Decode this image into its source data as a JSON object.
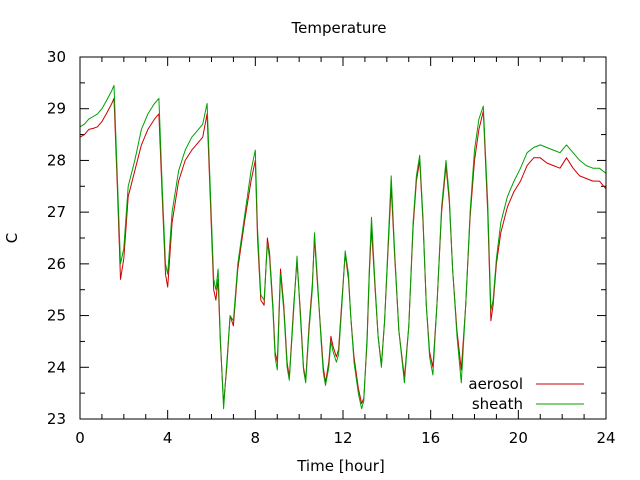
{
  "chart_data": {
    "type": "line",
    "title": "Temperature",
    "xlabel": "Time [hour]",
    "ylabel": "C",
    "xlim": [
      0,
      24
    ],
    "ylim": [
      23,
      30
    ],
    "x_ticks": [
      0,
      4,
      8,
      12,
      16,
      20,
      24
    ],
    "y_ticks": [
      23,
      24,
      25,
      26,
      27,
      28,
      29,
      30
    ],
    "grid": false,
    "legend_position": "bottom-right",
    "series": [
      {
        "name": "aerosol",
        "color": "#cc0000",
        "points": [
          [
            0,
            28.45
          ],
          [
            0.2,
            28.5
          ],
          [
            0.4,
            28.6
          ],
          [
            0.6,
            28.62
          ],
          [
            0.8,
            28.65
          ],
          [
            1,
            28.75
          ],
          [
            1.2,
            28.9
          ],
          [
            1.45,
            29.1
          ],
          [
            1.55,
            29.2
          ],
          [
            1.7,
            27.5
          ],
          [
            1.85,
            25.7
          ],
          [
            2,
            26.1
          ],
          [
            2.2,
            27.3
          ],
          [
            2.5,
            27.8
          ],
          [
            2.8,
            28.3
          ],
          [
            3.1,
            28.6
          ],
          [
            3.4,
            28.8
          ],
          [
            3.6,
            28.9
          ],
          [
            3.75,
            27.3
          ],
          [
            3.9,
            25.8
          ],
          [
            4,
            25.55
          ],
          [
            4.2,
            26.8
          ],
          [
            4.5,
            27.6
          ],
          [
            4.8,
            28.0
          ],
          [
            5.1,
            28.2
          ],
          [
            5.4,
            28.35
          ],
          [
            5.6,
            28.45
          ],
          [
            5.8,
            28.9
          ],
          [
            5.95,
            27.2
          ],
          [
            6.1,
            25.5
          ],
          [
            6.2,
            25.3
          ],
          [
            6.3,
            25.7
          ],
          [
            6.4,
            24.5
          ],
          [
            6.55,
            23.3
          ],
          [
            6.7,
            24.0
          ],
          [
            6.85,
            25.0
          ],
          [
            7.0,
            24.8
          ],
          [
            7.2,
            25.9
          ],
          [
            7.5,
            26.8
          ],
          [
            7.8,
            27.6
          ],
          [
            8.0,
            28.0
          ],
          [
            8.1,
            26.5
          ],
          [
            8.25,
            25.3
          ],
          [
            8.4,
            25.2
          ],
          [
            8.55,
            26.5
          ],
          [
            8.65,
            26.2
          ],
          [
            8.8,
            25.2
          ],
          [
            8.9,
            24.3
          ],
          [
            9.0,
            24.1
          ],
          [
            9.15,
            25.9
          ],
          [
            9.3,
            25.2
          ],
          [
            9.45,
            24.1
          ],
          [
            9.55,
            23.8
          ],
          [
            9.75,
            25.2
          ],
          [
            9.9,
            26.05
          ],
          [
            10.05,
            25.1
          ],
          [
            10.2,
            24.0
          ],
          [
            10.3,
            23.75
          ],
          [
            10.45,
            24.8
          ],
          [
            10.6,
            25.6
          ],
          [
            10.7,
            26.5
          ],
          [
            10.85,
            25.5
          ],
          [
            11.0,
            24.6
          ],
          [
            11.1,
            24.0
          ],
          [
            11.2,
            23.7
          ],
          [
            11.35,
            24.1
          ],
          [
            11.45,
            24.6
          ],
          [
            11.55,
            24.4
          ],
          [
            11.7,
            24.2
          ],
          [
            11.8,
            24.35
          ],
          [
            11.95,
            25.3
          ],
          [
            12.1,
            26.2
          ],
          [
            12.25,
            25.7
          ],
          [
            12.35,
            25.0
          ],
          [
            12.5,
            24.2
          ],
          [
            12.7,
            23.6
          ],
          [
            12.85,
            23.3
          ],
          [
            12.95,
            23.4
          ],
          [
            13.1,
            24.5
          ],
          [
            13.2,
            25.8
          ],
          [
            13.3,
            26.7
          ],
          [
            13.45,
            25.6
          ],
          [
            13.6,
            24.6
          ],
          [
            13.75,
            24.05
          ],
          [
            13.9,
            24.9
          ],
          [
            14.05,
            26.2
          ],
          [
            14.2,
            27.5
          ],
          [
            14.35,
            26.2
          ],
          [
            14.55,
            24.7
          ],
          [
            14.8,
            23.8
          ],
          [
            15.0,
            24.8
          ],
          [
            15.2,
            26.7
          ],
          [
            15.35,
            27.6
          ],
          [
            15.5,
            28.0
          ],
          [
            15.65,
            26.8
          ],
          [
            15.8,
            25.2
          ],
          [
            15.95,
            24.3
          ],
          [
            16.1,
            24.0
          ],
          [
            16.3,
            25.3
          ],
          [
            16.5,
            27.0
          ],
          [
            16.7,
            27.9
          ],
          [
            16.85,
            27.2
          ],
          [
            17.0,
            25.9
          ],
          [
            17.2,
            24.7
          ],
          [
            17.4,
            23.95
          ],
          [
            17.6,
            25.2
          ],
          [
            17.8,
            26.9
          ],
          [
            18.0,
            28.0
          ],
          [
            18.2,
            28.6
          ],
          [
            18.4,
            28.95
          ],
          [
            18.6,
            27.0
          ],
          [
            18.75,
            24.9
          ],
          [
            18.85,
            25.2
          ],
          [
            19.0,
            26.0
          ],
          [
            19.2,
            26.6
          ],
          [
            19.5,
            27.1
          ],
          [
            19.8,
            27.4
          ],
          [
            20.1,
            27.6
          ],
          [
            20.4,
            27.9
          ],
          [
            20.7,
            28.05
          ],
          [
            21.0,
            28.05
          ],
          [
            21.3,
            27.95
          ],
          [
            21.6,
            27.9
          ],
          [
            21.9,
            27.85
          ],
          [
            22.2,
            28.05
          ],
          [
            22.5,
            27.85
          ],
          [
            22.8,
            27.7
          ],
          [
            23.1,
            27.65
          ],
          [
            23.4,
            27.6
          ],
          [
            23.7,
            27.6
          ],
          [
            24.0,
            27.45
          ]
        ]
      },
      {
        "name": "sheath",
        "color": "#00a000",
        "points": [
          [
            0,
            28.65
          ],
          [
            0.2,
            28.7
          ],
          [
            0.4,
            28.8
          ],
          [
            0.6,
            28.85
          ],
          [
            0.8,
            28.9
          ],
          [
            1,
            29.0
          ],
          [
            1.2,
            29.15
          ],
          [
            1.45,
            29.35
          ],
          [
            1.55,
            29.45
          ],
          [
            1.7,
            27.7
          ],
          [
            1.85,
            26.0
          ],
          [
            2,
            26.3
          ],
          [
            2.2,
            27.5
          ],
          [
            2.5,
            28.0
          ],
          [
            2.8,
            28.6
          ],
          [
            3.1,
            28.9
          ],
          [
            3.4,
            29.1
          ],
          [
            3.6,
            29.2
          ],
          [
            3.75,
            27.5
          ],
          [
            3.9,
            26.0
          ],
          [
            4,
            25.8
          ],
          [
            4.2,
            27.0
          ],
          [
            4.5,
            27.8
          ],
          [
            4.8,
            28.2
          ],
          [
            5.1,
            28.45
          ],
          [
            5.4,
            28.6
          ],
          [
            5.6,
            28.7
          ],
          [
            5.8,
            29.1
          ],
          [
            5.95,
            27.4
          ],
          [
            6.1,
            25.7
          ],
          [
            6.2,
            25.5
          ],
          [
            6.3,
            25.9
          ],
          [
            6.4,
            24.6
          ],
          [
            6.55,
            23.2
          ],
          [
            6.7,
            24.1
          ],
          [
            6.85,
            25.0
          ],
          [
            7.0,
            24.9
          ],
          [
            7.2,
            26.0
          ],
          [
            7.5,
            26.9
          ],
          [
            7.8,
            27.8
          ],
          [
            8.0,
            28.2
          ],
          [
            8.1,
            26.7
          ],
          [
            8.25,
            25.4
          ],
          [
            8.4,
            25.3
          ],
          [
            8.55,
            26.4
          ],
          [
            8.65,
            26.1
          ],
          [
            8.8,
            25.1
          ],
          [
            8.9,
            24.2
          ],
          [
            9.0,
            23.95
          ],
          [
            9.15,
            25.8
          ],
          [
            9.3,
            25.1
          ],
          [
            9.45,
            24.0
          ],
          [
            9.55,
            23.75
          ],
          [
            9.75,
            25.1
          ],
          [
            9.9,
            26.15
          ],
          [
            10.05,
            25.0
          ],
          [
            10.2,
            23.95
          ],
          [
            10.3,
            23.7
          ],
          [
            10.45,
            24.7
          ],
          [
            10.6,
            25.5
          ],
          [
            10.7,
            26.6
          ],
          [
            10.85,
            25.6
          ],
          [
            11.0,
            24.5
          ],
          [
            11.1,
            23.9
          ],
          [
            11.2,
            23.65
          ],
          [
            11.35,
            24.0
          ],
          [
            11.45,
            24.5
          ],
          [
            11.55,
            24.3
          ],
          [
            11.7,
            24.1
          ],
          [
            11.8,
            24.25
          ],
          [
            11.95,
            25.2
          ],
          [
            12.1,
            26.25
          ],
          [
            12.25,
            25.8
          ],
          [
            12.35,
            25.0
          ],
          [
            12.5,
            24.1
          ],
          [
            12.7,
            23.5
          ],
          [
            12.85,
            23.2
          ],
          [
            12.95,
            23.35
          ],
          [
            13.1,
            24.6
          ],
          [
            13.2,
            25.9
          ],
          [
            13.3,
            26.9
          ],
          [
            13.45,
            25.7
          ],
          [
            13.6,
            24.6
          ],
          [
            13.75,
            24.0
          ],
          [
            13.9,
            24.9
          ],
          [
            14.05,
            26.3
          ],
          [
            14.2,
            27.7
          ],
          [
            14.35,
            26.3
          ],
          [
            14.55,
            24.7
          ],
          [
            14.8,
            23.7
          ],
          [
            15.0,
            24.8
          ],
          [
            15.2,
            26.8
          ],
          [
            15.35,
            27.7
          ],
          [
            15.5,
            28.1
          ],
          [
            15.65,
            26.9
          ],
          [
            15.8,
            25.2
          ],
          [
            15.95,
            24.2
          ],
          [
            16.1,
            23.85
          ],
          [
            16.3,
            25.3
          ],
          [
            16.5,
            27.1
          ],
          [
            16.7,
            28.0
          ],
          [
            16.85,
            27.3
          ],
          [
            17.0,
            25.9
          ],
          [
            17.2,
            24.6
          ],
          [
            17.4,
            23.7
          ],
          [
            17.6,
            25.2
          ],
          [
            17.8,
            27.0
          ],
          [
            18.0,
            28.2
          ],
          [
            18.2,
            28.8
          ],
          [
            18.4,
            29.05
          ],
          [
            18.6,
            27.2
          ],
          [
            18.75,
            25.1
          ],
          [
            18.85,
            25.3
          ],
          [
            19.0,
            26.1
          ],
          [
            19.2,
            26.8
          ],
          [
            19.5,
            27.3
          ],
          [
            19.8,
            27.6
          ],
          [
            20.1,
            27.85
          ],
          [
            20.4,
            28.15
          ],
          [
            20.7,
            28.25
          ],
          [
            21.0,
            28.3
          ],
          [
            21.3,
            28.25
          ],
          [
            21.6,
            28.2
          ],
          [
            21.9,
            28.15
          ],
          [
            22.2,
            28.3
          ],
          [
            22.5,
            28.15
          ],
          [
            22.8,
            28.0
          ],
          [
            23.1,
            27.9
          ],
          [
            23.4,
            27.85
          ],
          [
            23.7,
            27.85
          ],
          [
            24.0,
            27.75
          ]
        ]
      }
    ]
  }
}
